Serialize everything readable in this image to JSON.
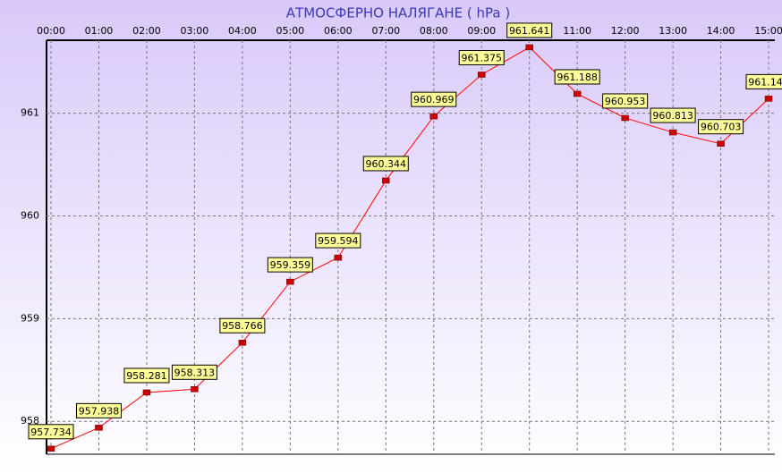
{
  "chart_data": {
    "type": "line",
    "title": "АТМОСФЕРНО НАЛЯГАНЕ  ( hPa )",
    "categories": [
      "00:00",
      "01:00",
      "02:00",
      "03:00",
      "04:00",
      "05:00",
      "06:00",
      "07:00",
      "08:00",
      "09:00",
      "10:00",
      "11:00",
      "12:00",
      "13:00",
      "14:00",
      "15:00"
    ],
    "values": [
      957.734,
      957.938,
      958.281,
      958.313,
      958.766,
      959.359,
      959.594,
      960.344,
      960.969,
      961.375,
      961.641,
      961.188,
      960.953,
      960.813,
      960.703,
      961.141
    ],
    "color": "#ff0000",
    "ylim": [
      957.68,
      961.71
    ],
    "yticks": [
      958,
      959,
      960,
      961
    ],
    "grid": true
  }
}
